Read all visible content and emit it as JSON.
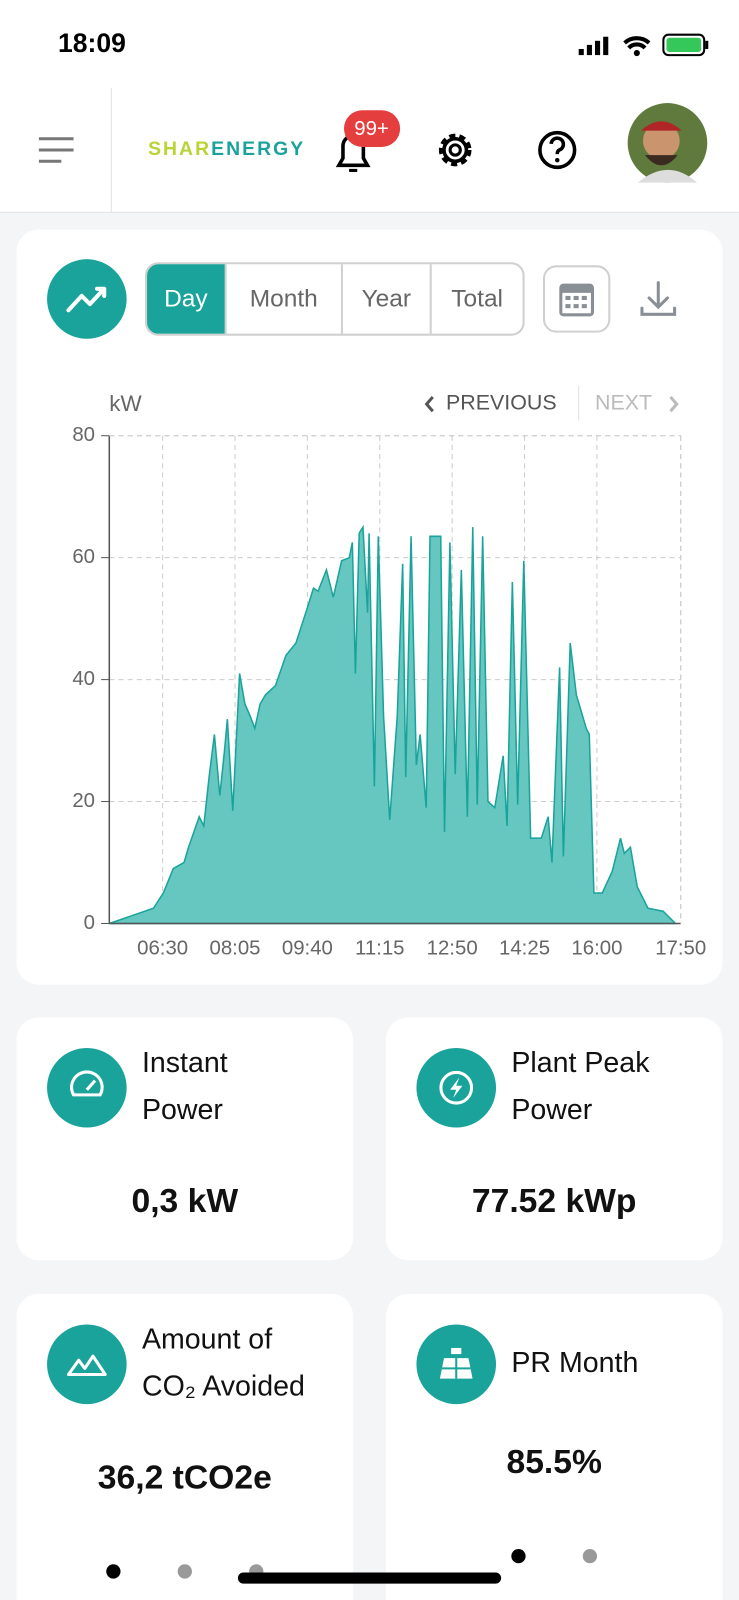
{
  "status_bar": {
    "time": "18:09"
  },
  "header": {
    "logo_prefix": "SHAR",
    "logo_suffix": "ENERGY",
    "notification_badge": "99+"
  },
  "tabs": [
    "Day",
    "Month",
    "Year",
    "Total"
  ],
  "chart_data": {
    "type": "area",
    "y_axis_label": "kW",
    "previous": "PREVIOUS",
    "next": "NEXT",
    "color": "#1aa39a",
    "fill": "#66c7c1",
    "x": [
      "05:20",
      "06:18",
      "06:31",
      "06:44",
      "06:58",
      "07:04",
      "07:18",
      "07:24",
      "07:31",
      "07:38",
      "07:45",
      "07:51",
      "07:55",
      "08:02",
      "08:11",
      "08:18",
      "08:25",
      "08:31",
      "08:38",
      "08:45",
      "08:58",
      "09:12",
      "09:25",
      "09:38",
      "09:48",
      "09:54",
      "10:05",
      "10:14",
      "10:25",
      "10:35",
      "10:39",
      "10:43",
      "10:48",
      "10:53",
      "10:59",
      "11:01",
      "11:08",
      "11:13",
      "11:20",
      "11:28",
      "11:38",
      "11:45",
      "11:49",
      "11:56",
      "12:03",
      "12:08",
      "12:16",
      "12:21",
      "12:35",
      "12:40",
      "12:47",
      "12:54",
      "13:02",
      "13:10",
      "13:17",
      "13:23",
      "13:30",
      "13:37",
      "13:46",
      "13:57",
      "14:02",
      "14:09",
      "14:16",
      "14:24",
      "14:33",
      "14:47",
      "14:56",
      "15:01",
      "15:11",
      "15:16",
      "15:25",
      "15:33",
      "15:46",
      "15:50",
      "15:56",
      "16:07",
      "16:20",
      "16:31",
      "16:36",
      "16:44",
      "16:53",
      "17:07",
      "17:27",
      "17:43"
    ],
    "values": [
      0,
      2.5,
      5,
      9,
      10,
      12.5,
      17.5,
      16,
      24,
      31,
      21,
      28,
      33.5,
      18.5,
      41,
      36,
      34,
      32,
      36,
      37.5,
      39,
      44,
      46,
      51,
      55,
      54.5,
      58,
      53.5,
      59.5,
      60,
      62.5,
      41,
      64,
      65,
      51,
      64,
      22.5,
      63.5,
      34,
      17,
      34,
      59,
      24,
      63.5,
      26,
      31,
      19,
      63.5,
      63.5,
      15,
      62.5,
      24.5,
      58,
      17.5,
      65,
      19.5,
      63.5,
      20,
      19,
      27.5,
      16,
      56,
      19.5,
      59.5,
      14,
      14,
      17.5,
      10,
      42,
      11,
      46,
      37.5,
      32,
      31,
      5,
      5,
      8.5,
      14,
      11.5,
      12.5,
      6,
      2.5,
      2,
      0
    ],
    "xlim": [
      "05:20",
      "17:50"
    ],
    "xticks": [
      "06:30",
      "08:05",
      "09:40",
      "11:15",
      "12:50",
      "14:25",
      "16:00",
      "17:50"
    ],
    "ylim": [
      0,
      80
    ],
    "yticks": [
      0,
      20,
      40,
      60,
      80
    ],
    "grid": true
  },
  "cards": [
    {
      "title_lines": [
        "Instant",
        "Power"
      ],
      "value": "0,3 kW"
    },
    {
      "title_lines": [
        "Plant Peak",
        "Power"
      ],
      "value": "77.52 kWp"
    },
    {
      "title_lines": [
        "Amount of",
        "CO₂ Avoided"
      ],
      "value": "36,2 tCO2e"
    },
    {
      "title_lines": [
        "PR Month"
      ],
      "value": "85.5%"
    }
  ]
}
